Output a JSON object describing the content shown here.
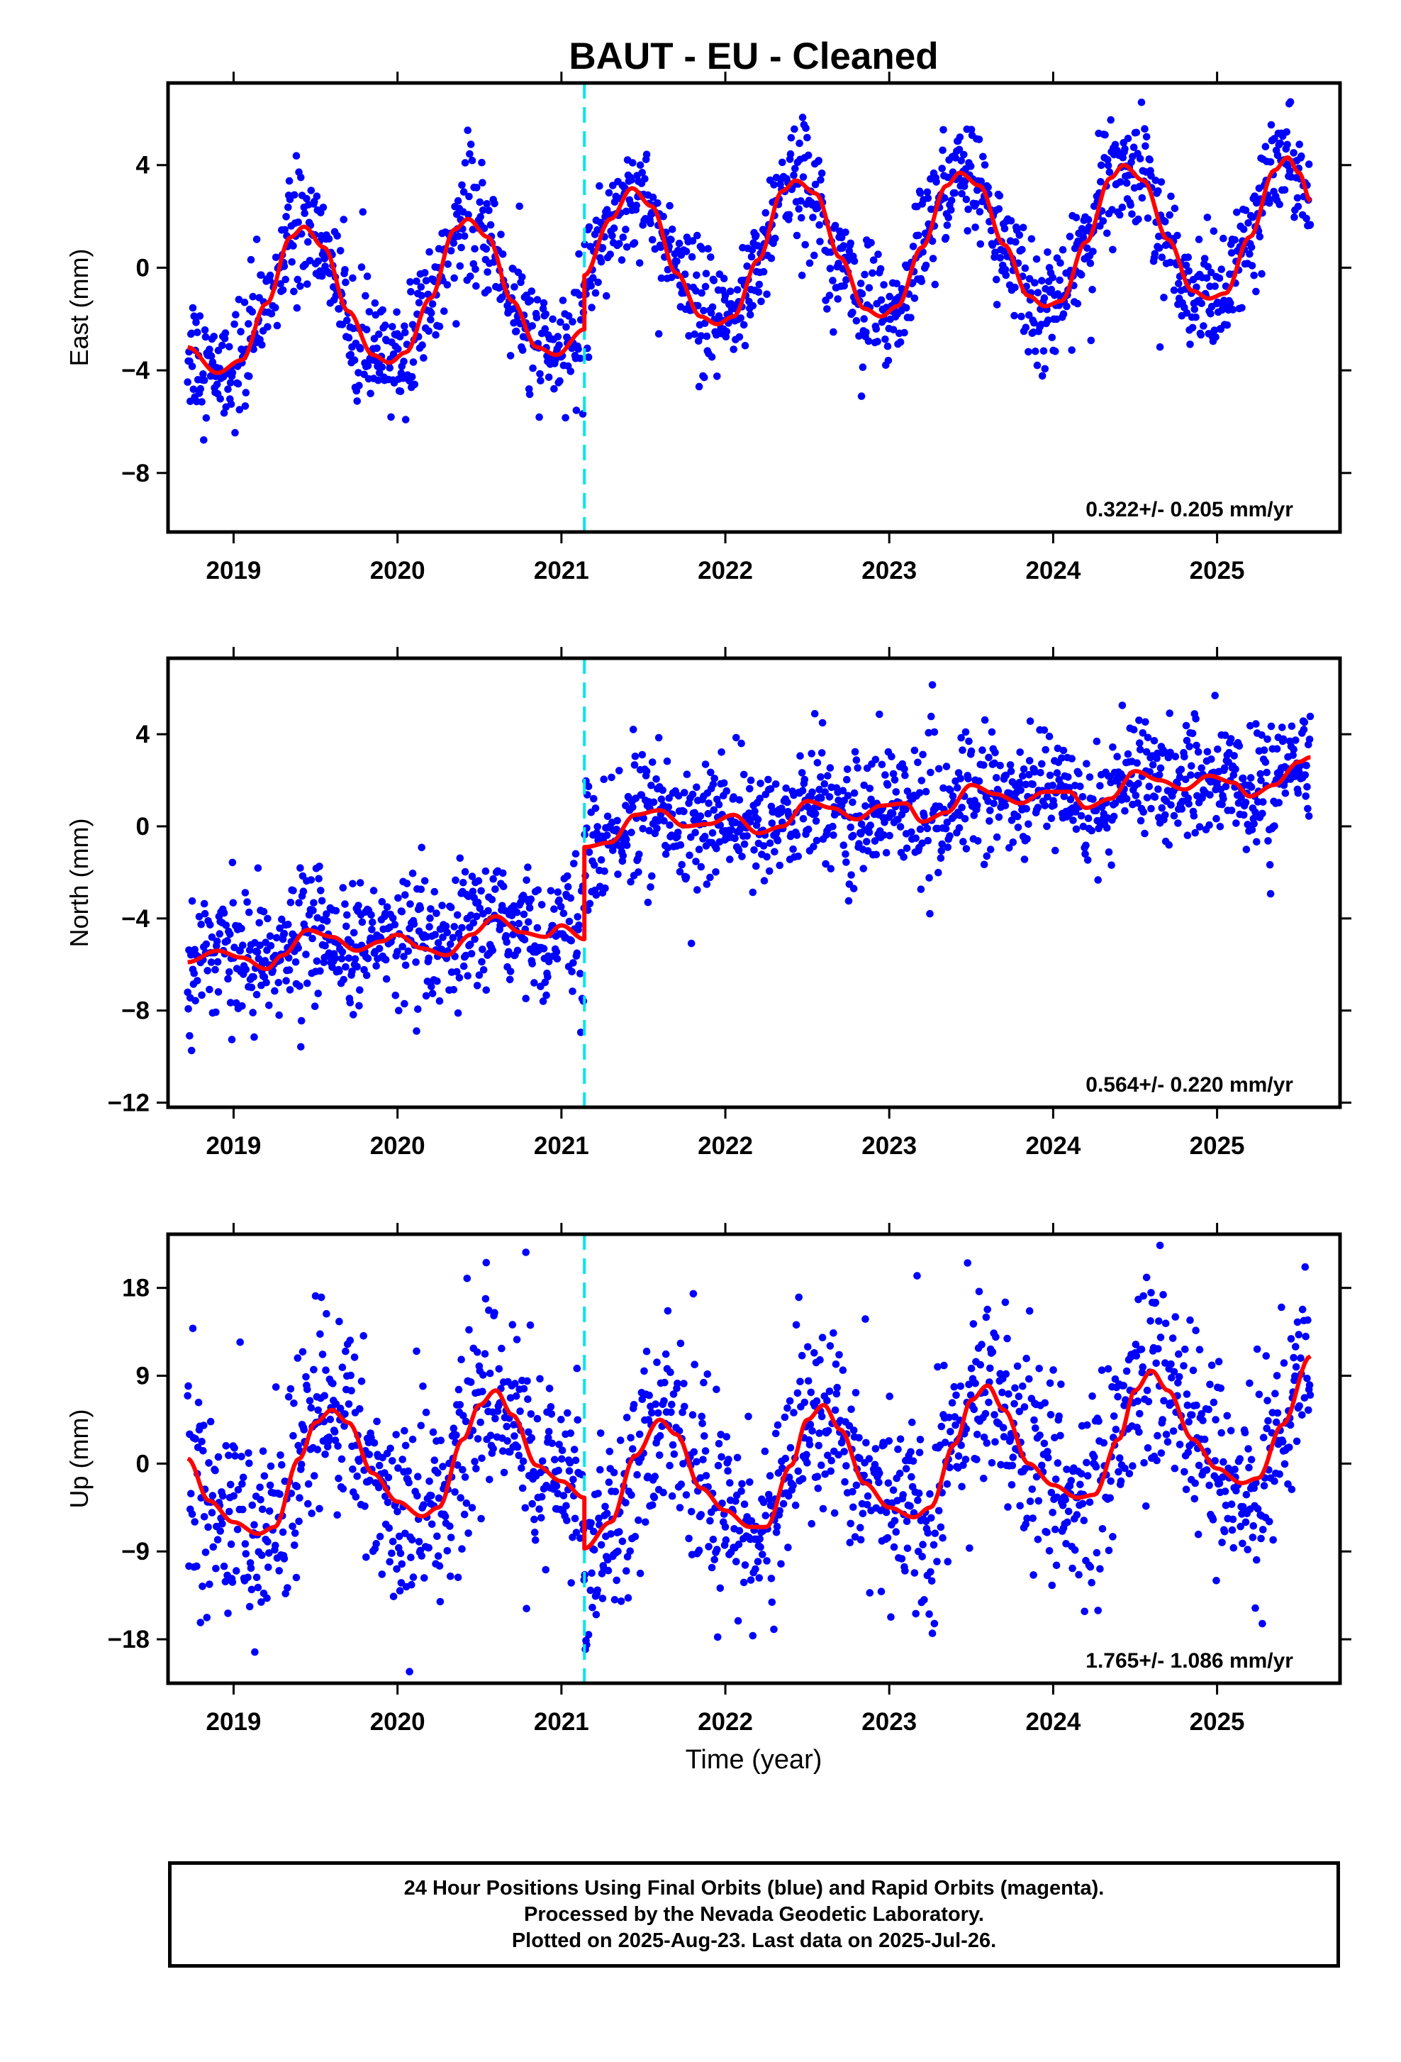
{
  "title": "BAUT  - EU - Cleaned",
  "xlabel": "Time (year)",
  "x_ticks": [
    "2019",
    "2020",
    "2021",
    "2022",
    "2023",
    "2024",
    "2025"
  ],
  "caption": [
    "24 Hour Positions Using Final Orbits (blue) and Rapid Orbits (magenta).",
    "Processed by the Nevada Geodetic Laboratory.",
    "Plotted on 2025-Aug-23. Last data on 2025-Jul-26."
  ],
  "colors": {
    "data": "#0000ff",
    "model": "#ff0000",
    "equipment_change": "#00e5ee"
  },
  "chart_data": [
    {
      "type": "scatter",
      "component": "East",
      "ylabel": "East (mm)",
      "ylim": [
        -10.3,
        7.2
      ],
      "yticks": [
        -8,
        -4,
        0,
        4
      ],
      "xlim": [
        2018.6,
        2025.75
      ],
      "rate_text": "0.322+/- 0.205 mm/yr",
      "equipment_change": 2021.14,
      "model": {
        "x": [
          2018.72,
          2018.9,
          2019.05,
          2019.2,
          2019.35,
          2019.43,
          2019.55,
          2019.7,
          2019.85,
          2019.95,
          2020.05,
          2020.2,
          2020.35,
          2020.43,
          2020.55,
          2020.7,
          2020.85,
          2020.97,
          2021.14,
          2021.14,
          2021.3,
          2021.43,
          2021.55,
          2021.7,
          2021.85,
          2021.95,
          2022.05,
          2022.2,
          2022.35,
          2022.43,
          2022.55,
          2022.7,
          2022.85,
          2022.95,
          2023.05,
          2023.2,
          2023.35,
          2023.43,
          2023.55,
          2023.7,
          2023.85,
          2023.95,
          2024.05,
          2024.2,
          2024.35,
          2024.43,
          2024.55,
          2024.7,
          2024.85,
          2024.95,
          2025.05,
          2025.2,
          2025.35,
          2025.43,
          2025.5,
          2025.57
        ],
        "y": [
          -3.1,
          -4.1,
          -3.6,
          -1.4,
          1.2,
          1.6,
          0.8,
          -1.7,
          -3.4,
          -3.7,
          -3.3,
          -1.2,
          1.5,
          1.9,
          1.2,
          -1.3,
          -3.1,
          -3.4,
          -2.4,
          -0.3,
          1.9,
          3.1,
          2.4,
          -0.2,
          -1.9,
          -2.2,
          -1.9,
          0.3,
          3.0,
          3.4,
          2.9,
          0.4,
          -1.6,
          -1.9,
          -1.5,
          0.8,
          3.2,
          3.7,
          3.2,
          0.9,
          -1.1,
          -1.5,
          -1.3,
          1.0,
          3.5,
          4.0,
          3.4,
          1.1,
          -0.9,
          -1.2,
          -1.0,
          1.2,
          3.8,
          4.3,
          3.7,
          2.6
        ]
      }
    },
    {
      "type": "scatter",
      "component": "North",
      "ylabel": "North (mm)",
      "ylim": [
        -12.2,
        7.3
      ],
      "yticks": [
        -12,
        -8,
        -4,
        0,
        4
      ],
      "xlim": [
        2018.6,
        2025.75
      ],
      "rate_text": "0.564+/- 0.220 mm/yr",
      "equipment_change": 2021.14,
      "model": {
        "x": [
          2018.72,
          2018.9,
          2019.05,
          2019.2,
          2019.3,
          2019.45,
          2019.6,
          2019.75,
          2019.9,
          2020.0,
          2020.15,
          2020.3,
          2020.45,
          2020.6,
          2020.75,
          2020.9,
          2021.0,
          2021.14,
          2021.14,
          2021.3,
          2021.45,
          2021.6,
          2021.75,
          2021.9,
          2022.05,
          2022.2,
          2022.35,
          2022.5,
          2022.65,
          2022.8,
          2022.95,
          2023.1,
          2023.2,
          2023.35,
          2023.5,
          2023.65,
          2023.8,
          2023.95,
          2024.1,
          2024.2,
          2024.35,
          2024.5,
          2024.65,
          2024.8,
          2024.95,
          2025.1,
          2025.2,
          2025.35,
          2025.5,
          2025.57
        ],
        "y": [
          -5.9,
          -5.4,
          -5.7,
          -6.2,
          -5.6,
          -4.5,
          -4.8,
          -5.4,
          -5.0,
          -4.7,
          -5.3,
          -5.6,
          -4.7,
          -3.9,
          -4.6,
          -4.8,
          -4.3,
          -4.9,
          -0.9,
          -0.7,
          0.5,
          0.7,
          0.0,
          0.1,
          0.5,
          -0.3,
          0.0,
          1.1,
          0.8,
          0.3,
          0.9,
          1.0,
          0.2,
          0.6,
          1.8,
          1.4,
          1.0,
          1.5,
          1.5,
          0.8,
          1.2,
          2.4,
          2.0,
          1.6,
          2.2,
          1.9,
          1.3,
          1.8,
          2.8,
          3.0
        ]
      }
    },
    {
      "type": "scatter",
      "component": "Up",
      "ylabel": "Up (mm)",
      "ylim": [
        -22.5,
        23.5
      ],
      "yticks": [
        -18,
        -9,
        0,
        9,
        18
      ],
      "xlim": [
        2018.6,
        2025.75
      ],
      "rate_text": "1.765+/- 1.086 mm/yr",
      "equipment_change": 2021.14,
      "model": {
        "x": [
          2018.72,
          2018.85,
          2019.0,
          2019.15,
          2019.25,
          2019.4,
          2019.5,
          2019.6,
          2019.7,
          2019.85,
          2020.0,
          2020.15,
          2020.25,
          2020.4,
          2020.5,
          2020.6,
          2020.7,
          2020.85,
          2021.0,
          2021.14,
          2021.14,
          2021.3,
          2021.45,
          2021.6,
          2021.7,
          2021.85,
          2022.0,
          2022.15,
          2022.25,
          2022.4,
          2022.5,
          2022.6,
          2022.7,
          2022.85,
          2023.0,
          2023.15,
          2023.25,
          2023.4,
          2023.5,
          2023.6,
          2023.7,
          2023.85,
          2024.0,
          2024.15,
          2024.25,
          2024.4,
          2024.5,
          2024.6,
          2024.7,
          2024.85,
          2025.0,
          2025.15,
          2025.25,
          2025.4,
          2025.57
        ],
        "y": [
          0.5,
          -3.8,
          -6.0,
          -7.2,
          -6.5,
          0.5,
          4.2,
          5.5,
          4.2,
          -1.0,
          -3.9,
          -5.4,
          -4.5,
          2.5,
          6.0,
          7.5,
          5.0,
          -0.2,
          -1.8,
          -3.5,
          -8.7,
          -6.0,
          0.8,
          4.5,
          3.0,
          -2.5,
          -4.8,
          -6.5,
          -6.5,
          -0.2,
          4.5,
          6.0,
          3.5,
          -2.0,
          -4.5,
          -5.5,
          -4.5,
          2.0,
          6.5,
          8.0,
          5.5,
          0.0,
          -2.2,
          -3.5,
          -3.2,
          2.5,
          7.5,
          9.5,
          7.5,
          2.5,
          -0.5,
          -2.0,
          -1.5,
          4.0,
          11.0
        ]
      }
    }
  ]
}
